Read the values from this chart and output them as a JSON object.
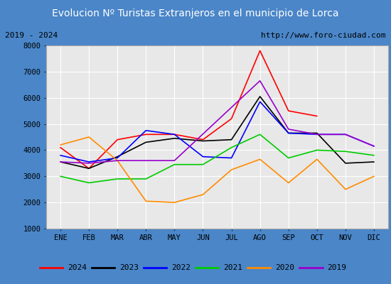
{
  "title": "Evolucion Nº Turistas Extranjeros en el municipio de Lorca",
  "subtitle_left": "2019 - 2024",
  "subtitle_right": "http://www.foro-ciudad.com",
  "months": [
    "ENE",
    "FEB",
    "MAR",
    "ABR",
    "MAY",
    "JUN",
    "JUL",
    "AGO",
    "SEP",
    "OCT",
    "NOV",
    "DIC"
  ],
  "ylim": [
    1000,
    8000
  ],
  "yticks": [
    1000,
    2000,
    3000,
    4000,
    5000,
    6000,
    7000,
    8000
  ],
  "series": {
    "2024": {
      "color": "#ff0000",
      "data": [
        4100,
        3300,
        4400,
        4600,
        4600,
        4400,
        5200,
        7800,
        5500,
        5300,
        null,
        null
      ]
    },
    "2023": {
      "color": "#000000",
      "data": [
        3550,
        3300,
        3750,
        4300,
        4450,
        4350,
        4400,
        6050,
        4650,
        4650,
        3500,
        3550
      ]
    },
    "2022": {
      "color": "#0000ff",
      "data": [
        3800,
        3550,
        3700,
        4750,
        4600,
        3750,
        3700,
        5850,
        4650,
        4600,
        4600,
        4150
      ]
    },
    "2021": {
      "color": "#00cc00",
      "data": [
        3000,
        2750,
        2900,
        2900,
        3450,
        3450,
        4100,
        4600,
        3700,
        4000,
        3950,
        3800
      ]
    },
    "2020": {
      "color": "#ff8c00",
      "data": [
        4200,
        4500,
        3600,
        2050,
        2000,
        2300,
        3250,
        3650,
        2750,
        3650,
        2500,
        3000
      ]
    },
    "2019": {
      "color": "#9900cc",
      "data": [
        3550,
        3500,
        3600,
        3600,
        3600,
        null,
        null,
        6650,
        4800,
        4600,
        4600,
        4150
      ]
    }
  },
  "title_bg_color": "#4a86c8",
  "plot_bg_color": "#e8e8e8",
  "subtitle_bg_color": "#e0e0e0",
  "border_color": "#4a86c8",
  "grid_color": "#ffffff",
  "title_fontsize": 10,
  "tick_fontsize": 7.5,
  "legend_fontsize": 8
}
